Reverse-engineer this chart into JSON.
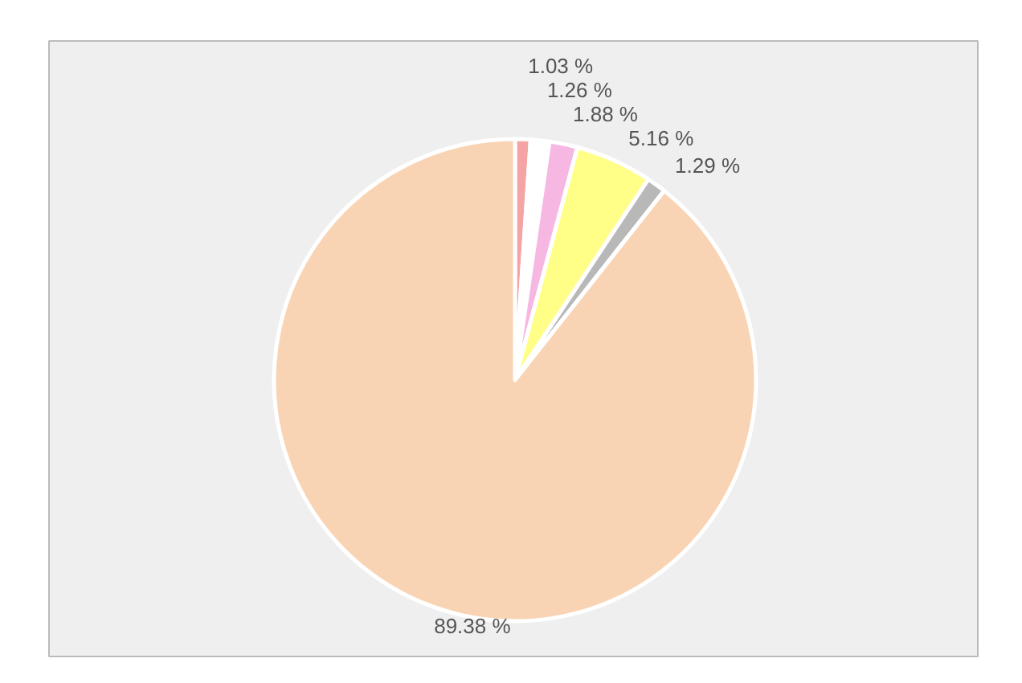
{
  "chart_data": {
    "type": "pie",
    "categories": [
      null,
      null,
      null,
      null,
      null,
      null
    ],
    "values": [
      1.03,
      1.26,
      1.88,
      5.16,
      1.29,
      89.38
    ],
    "colors": [
      "#f4a4a4",
      "#ffffff",
      "#f6b8e2",
      "#ffff88",
      "#b8b8b8",
      "#f9d4b4"
    ],
    "value_labels": [
      "1.03 %",
      "1.26 %",
      "1.88 %",
      "5.16 %",
      "1.29 %",
      "89.38 %"
    ]
  }
}
